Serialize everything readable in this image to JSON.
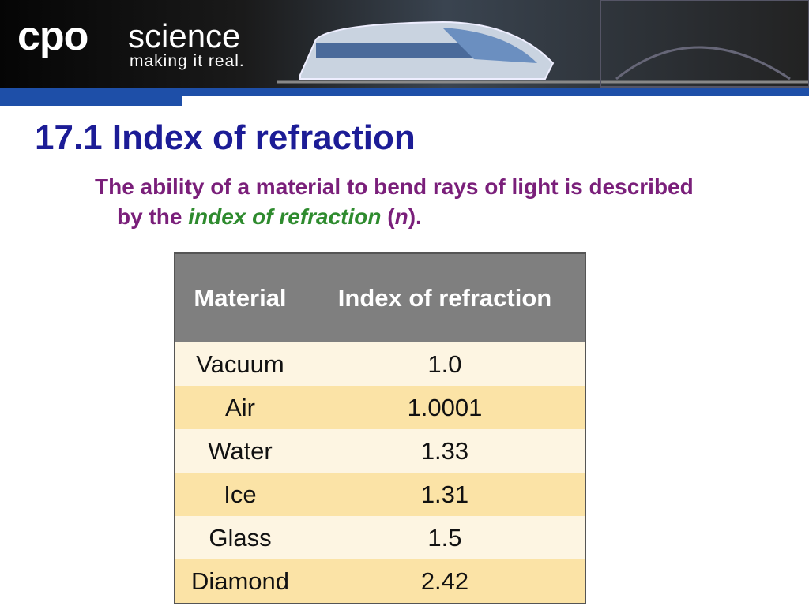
{
  "header": {
    "logo": "cpo",
    "brand": "science",
    "tagline": "making it real."
  },
  "title": "17.1 Index of refraction",
  "body": {
    "text": "The ability of a material to bend rays of light is described by the ",
    "term": "index of refraction",
    "open": " (",
    "symbol": "n",
    "close": ")."
  },
  "table": {
    "columns": [
      "Material",
      "Index of refraction"
    ],
    "rows": [
      [
        "Vacuum",
        "1.0"
      ],
      [
        "Air",
        "1.0001"
      ],
      [
        "Water",
        "1.33"
      ],
      [
        "Ice",
        "1.31"
      ],
      [
        "Glass",
        "1.5"
      ],
      [
        "Diamond",
        "2.42"
      ]
    ]
  }
}
